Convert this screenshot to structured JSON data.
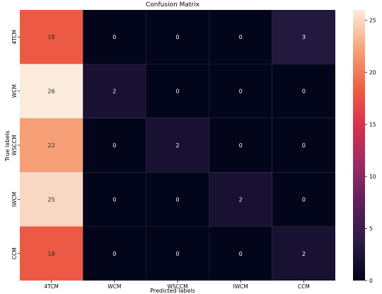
{
  "chart_data": {
    "type": "heatmap",
    "title": "Confusion Matrix",
    "xlabel": "Predicted labels",
    "ylabel": "True labels",
    "x_categories": [
      "4TCM",
      "WCM",
      "WSCCM",
      "IWCM",
      "CCM"
    ],
    "y_categories": [
      "4TCM",
      "WCM",
      "WSCCM",
      "IWCM",
      "CCM"
    ],
    "values": [
      [
        18,
        0,
        0,
        0,
        3
      ],
      [
        26,
        2,
        0,
        0,
        0
      ],
      [
        22,
        0,
        2,
        0,
        0
      ],
      [
        25,
        0,
        0,
        2,
        0
      ],
      [
        18,
        0,
        0,
        0,
        2
      ]
    ],
    "colorbar": {
      "range": [
        0,
        26
      ],
      "ticks": [
        0,
        5,
        10,
        15,
        20,
        25
      ]
    },
    "colormap": [
      "#03051a",
      "#2b1c47",
      "#5c1f5f",
      "#9e2a63",
      "#d9304c",
      "#f06043",
      "#f6a47b",
      "#faebdd"
    ]
  }
}
